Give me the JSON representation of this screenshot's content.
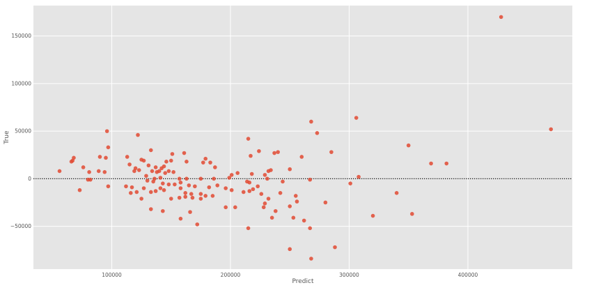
{
  "chart_data": {
    "type": "scatter",
    "title": "",
    "xlabel": "Predict",
    "ylabel": "True",
    "xlim": [
      34000,
      488000
    ],
    "ylim": [
      -95000,
      182000
    ],
    "xticks": [
      100000,
      200000,
      300000,
      400000
    ],
    "xtick_labels": [
      "100000",
      "200000",
      "300000",
      "400000"
    ],
    "yticks": [
      -50000,
      0,
      50000,
      100000,
      150000
    ],
    "ytick_labels": [
      "−50000",
      "0",
      "50000",
      "100000",
      "150000"
    ],
    "grid": true,
    "reference_line": {
      "y": 0,
      "style": "dotted"
    },
    "colors": {
      "background": "#e5e5e5",
      "grid": "#ffffff",
      "point": "#e24a33",
      "text": "#555555",
      "refline": "#222222"
    },
    "points": [
      [
        428000,
        170000
      ],
      [
        470000,
        52000
      ],
      [
        306000,
        64000
      ],
      [
        268000,
        60000
      ],
      [
        273000,
        48000
      ],
      [
        122000,
        46000
      ],
      [
        96000,
        50000
      ],
      [
        215000,
        42000
      ],
      [
        350000,
        35000
      ],
      [
        97000,
        33000
      ],
      [
        133000,
        30000
      ],
      [
        285000,
        28000
      ],
      [
        240000,
        28000
      ],
      [
        224000,
        29000
      ],
      [
        237000,
        27000
      ],
      [
        151000,
        26000
      ],
      [
        161000,
        27000
      ],
      [
        217000,
        24000
      ],
      [
        260000,
        23000
      ],
      [
        113000,
        23000
      ],
      [
        179000,
        21000
      ],
      [
        90000,
        23000
      ],
      [
        95000,
        22000
      ],
      [
        125000,
        20000
      ],
      [
        127000,
        19000
      ],
      [
        68000,
        22000
      ],
      [
        67000,
        19000
      ],
      [
        66000,
        18000
      ],
      [
        146000,
        18000
      ],
      [
        150000,
        19000
      ],
      [
        163000,
        18000
      ],
      [
        177000,
        17000
      ],
      [
        183000,
        17000
      ],
      [
        115000,
        15000
      ],
      [
        131000,
        14000
      ],
      [
        137000,
        12000
      ],
      [
        144000,
        13000
      ],
      [
        142000,
        11000
      ],
      [
        120000,
        11000
      ],
      [
        76000,
        12000
      ],
      [
        187000,
        12000
      ],
      [
        308000,
        2000
      ],
      [
        369000,
        16000
      ],
      [
        382000,
        16000
      ],
      [
        119000,
        8000
      ],
      [
        123000,
        9000
      ],
      [
        134000,
        8000
      ],
      [
        138000,
        7000
      ],
      [
        140000,
        8000
      ],
      [
        145000,
        6000
      ],
      [
        148000,
        8000
      ],
      [
        152000,
        7000
      ],
      [
        89000,
        8000
      ],
      [
        81000,
        7000
      ],
      [
        56000,
        8000
      ],
      [
        94000,
        7000
      ],
      [
        129000,
        3000
      ],
      [
        232000,
        8000
      ],
      [
        234000,
        9000
      ],
      [
        250000,
        10000
      ],
      [
        206000,
        6000
      ],
      [
        218000,
        5000
      ],
      [
        229000,
        4000
      ],
      [
        201000,
        4000
      ],
      [
        199000,
        1000
      ],
      [
        186000,
        0
      ],
      [
        136000,
        0
      ],
      [
        141000,
        1000
      ],
      [
        157000,
        0
      ],
      [
        163000,
        0
      ],
      [
        175000,
        0
      ],
      [
        231000,
        0
      ],
      [
        80000,
        -1000
      ],
      [
        82000,
        -1000
      ],
      [
        130000,
        -2000
      ],
      [
        135000,
        -3000
      ],
      [
        158000,
        -4000
      ],
      [
        214000,
        -3000
      ],
      [
        216000,
        -4000
      ],
      [
        244000,
        -3000
      ],
      [
        301000,
        -5000
      ],
      [
        267000,
        -1000
      ],
      [
        143000,
        -5000
      ],
      [
        148000,
        -6000
      ],
      [
        153000,
        -6000
      ],
      [
        165000,
        -7000
      ],
      [
        170000,
        -8000
      ],
      [
        182000,
        -9000
      ],
      [
        189000,
        -7000
      ],
      [
        97000,
        -8000
      ],
      [
        112000,
        -8000
      ],
      [
        117000,
        -9000
      ],
      [
        127000,
        -10000
      ],
      [
        141000,
        -10000
      ],
      [
        144000,
        -12000
      ],
      [
        158000,
        -10000
      ],
      [
        196000,
        -10000
      ],
      [
        201000,
        -12000
      ],
      [
        219000,
        -11000
      ],
      [
        223000,
        -8000
      ],
      [
        73000,
        -12000
      ],
      [
        116000,
        -15000
      ],
      [
        121000,
        -14000
      ],
      [
        133000,
        -14000
      ],
      [
        137000,
        -13000
      ],
      [
        162000,
        -15000
      ],
      [
        167000,
        -16000
      ],
      [
        175000,
        -16000
      ],
      [
        179000,
        -18000
      ],
      [
        185000,
        -18000
      ],
      [
        211000,
        -14000
      ],
      [
        216000,
        -13000
      ],
      [
        226000,
        -16000
      ],
      [
        242000,
        -15000
      ],
      [
        255000,
        -18000
      ],
      [
        340000,
        -15000
      ],
      [
        157000,
        -20000
      ],
      [
        162000,
        -19000
      ],
      [
        168000,
        -20000
      ],
      [
        175000,
        -21000
      ],
      [
        125000,
        -21000
      ],
      [
        150000,
        -21000
      ],
      [
        232000,
        -21000
      ],
      [
        256000,
        -24000
      ],
      [
        229000,
        -26000
      ],
      [
        228000,
        -30000
      ],
      [
        280000,
        -25000
      ],
      [
        204000,
        -30000
      ],
      [
        196000,
        -30000
      ],
      [
        250000,
        -29000
      ],
      [
        133000,
        -32000
      ],
      [
        143000,
        -34000
      ],
      [
        166000,
        -35000
      ],
      [
        238000,
        -34000
      ],
      [
        158000,
        -42000
      ],
      [
        235000,
        -41000
      ],
      [
        253000,
        -41000
      ],
      [
        262000,
        -44000
      ],
      [
        320000,
        -39000
      ],
      [
        353000,
        -37000
      ],
      [
        172000,
        -48000
      ],
      [
        215000,
        -52000
      ],
      [
        267000,
        -52000
      ],
      [
        288000,
        -72000
      ],
      [
        250000,
        -74000
      ],
      [
        268000,
        -84000
      ]
    ]
  }
}
